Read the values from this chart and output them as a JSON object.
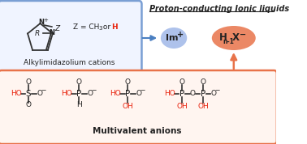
{
  "title": "Proton-conducting Ionic liquids",
  "top_box_label": "Alkylimidazolium cations",
  "bottom_box_label": "Multivalent anions",
  "top_box_color": "#7a9fd4",
  "bottom_box_color": "#e8734a",
  "top_box_fill": "#f0f4ff",
  "bottom_box_fill": "#fff5f0",
  "arrow_color": "#4a7fc1",
  "arrow_up_color": "#e8734a",
  "im_ellipse_color": "#a0b8e8",
  "hn_ellipse_color": "#e8734a",
  "red_color": "#e8200a",
  "dark_color": "#222222",
  "bond_color": "#333333"
}
